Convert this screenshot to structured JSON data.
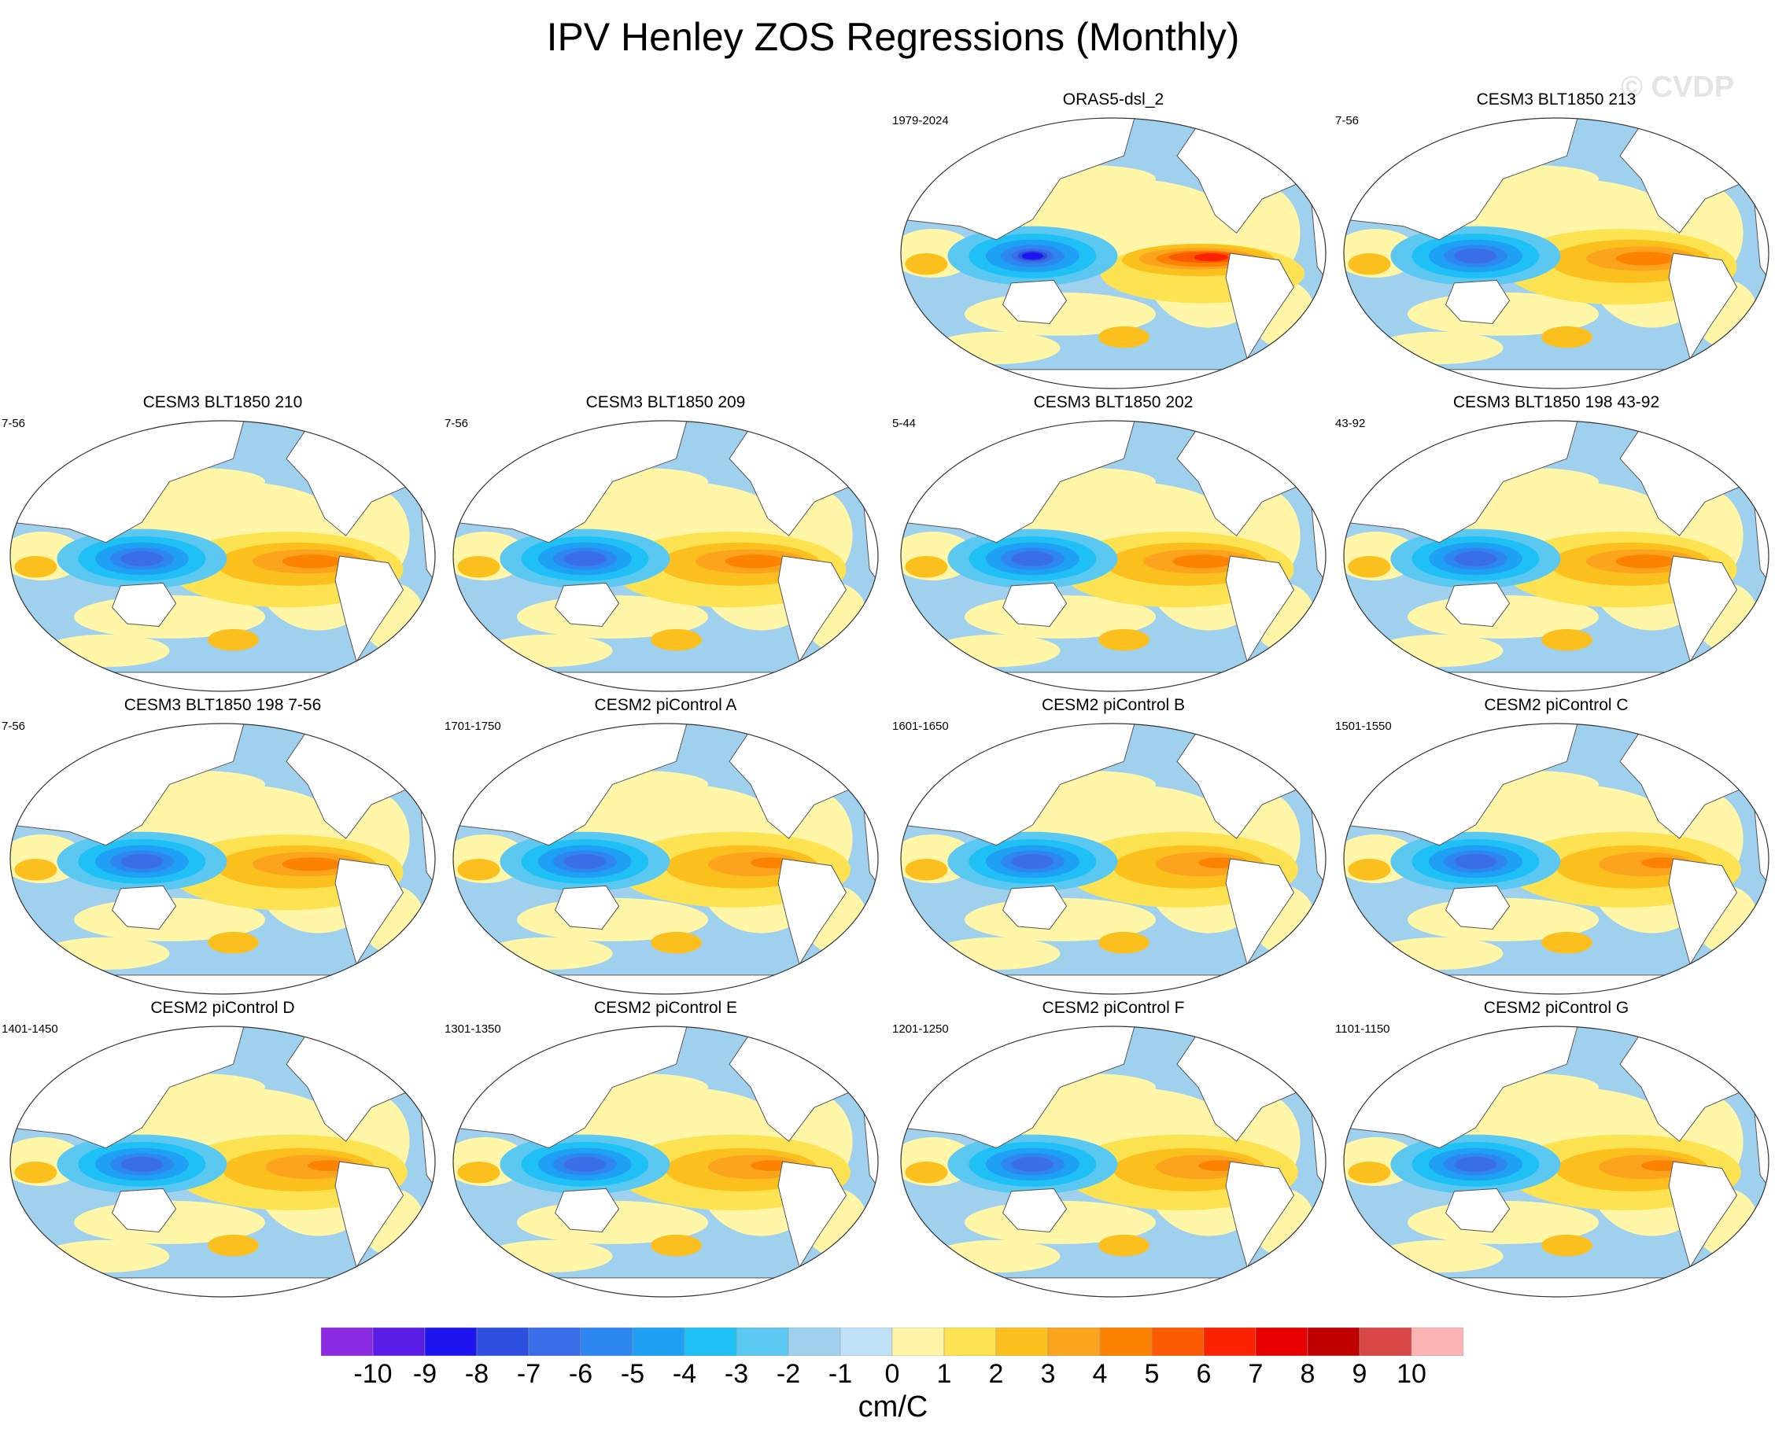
{
  "title": "IPV Henley ZOS Regressions (Monthly)",
  "watermark": "© CVDP",
  "panels": [
    {
      "title": "ORAS5-dsl_2",
      "years": "1979-2024",
      "variant": "obs"
    },
    {
      "title": "CESM3 BLT1850 213",
      "years": "7-56",
      "variant": "cesm3"
    },
    {
      "title": "CESM3 BLT1850 210",
      "years": "7-56",
      "variant": "cesm3"
    },
    {
      "title": "CESM3 BLT1850 209",
      "years": "7-56",
      "variant": "cesm3"
    },
    {
      "title": "CESM3 BLT1850 202",
      "years": "5-44",
      "variant": "cesm3"
    },
    {
      "title": "CESM3 BLT1850 198 43-92",
      "years": "43-92",
      "variant": "cesm3"
    },
    {
      "title": "CESM3 BLT1850 198 7-56",
      "years": "7-56",
      "variant": "cesm3"
    },
    {
      "title": "CESM2 piControl A",
      "years": "1701-1750",
      "variant": "cesm2"
    },
    {
      "title": "CESM2 piControl B",
      "years": "1601-1650",
      "variant": "cesm2"
    },
    {
      "title": "CESM2 piControl C",
      "years": "1501-1550",
      "variant": "cesm2"
    },
    {
      "title": "CESM2 piControl D",
      "years": "1401-1450",
      "variant": "cesm2"
    },
    {
      "title": "CESM2 piControl E",
      "years": "1301-1350",
      "variant": "cesm2"
    },
    {
      "title": "CESM2 piControl F",
      "years": "1201-1250",
      "variant": "cesm2"
    },
    {
      "title": "CESM2 piControl G",
      "years": "1101-1150",
      "variant": "cesm2"
    }
  ],
  "colorbar": {
    "units": "cm/C",
    "labels": [
      "-10",
      "-9",
      "-8",
      "-7",
      "-6",
      "-5",
      "-4",
      "-3",
      "-2",
      "-1",
      "0",
      "1",
      "2",
      "3",
      "4",
      "5",
      "6",
      "7",
      "8",
      "9",
      "10"
    ],
    "colors": [
      "#8a2be2",
      "#5a1de8",
      "#1e14f0",
      "#2d4fe0",
      "#3a6ee8",
      "#2e86f0",
      "#1ea0f5",
      "#1ec0f5",
      "#5ac8f0",
      "#9fd0ee",
      "#bfe0f6",
      "#fff6a8",
      "#fde352",
      "#fcc01e",
      "#fca41e",
      "#fc8200",
      "#fc5a00",
      "#fc2200",
      "#e80000",
      "#c00000",
      "#d84646",
      "#fcb4b4"
    ]
  },
  "colors": {
    "land": "#ffffff",
    "coast": "#555555",
    "map_outline": "#333333"
  }
}
